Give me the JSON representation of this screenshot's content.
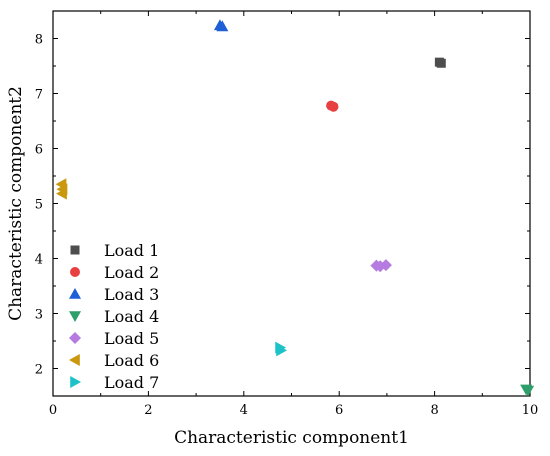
{
  "chart_data": {
    "type": "scatter",
    "title": "",
    "xlabel": "Characteristic component1",
    "ylabel": "Characteristic component2",
    "xlim": [
      0,
      10
    ],
    "ylim": [
      1.5,
      8.5
    ],
    "xticks": [
      0,
      2,
      4,
      6,
      8,
      10
    ],
    "yticks": [
      2,
      3,
      4,
      5,
      6,
      7,
      8
    ],
    "grid": false,
    "legend": "left",
    "series": [
      {
        "name": "Load 1",
        "marker": "square",
        "color": "#4d4d4d",
        "points": [
          [
            8.1,
            7.57
          ],
          [
            8.14,
            7.55
          ]
        ]
      },
      {
        "name": "Load 2",
        "marker": "circle",
        "color": "#e84040",
        "points": [
          [
            5.83,
            6.78
          ],
          [
            5.88,
            6.76
          ]
        ]
      },
      {
        "name": "Load 3",
        "marker": "triangle-up",
        "color": "#1f5fd6",
        "points": [
          [
            3.5,
            8.24
          ],
          [
            3.55,
            8.22
          ]
        ]
      },
      {
        "name": "Load 4",
        "marker": "triangle-down",
        "color": "#2e9e6a",
        "points": [
          [
            9.92,
            1.62
          ],
          [
            9.96,
            1.6
          ]
        ]
      },
      {
        "name": "Load 5",
        "marker": "diamond",
        "color": "#b57be0",
        "points": [
          [
            6.78,
            3.87
          ],
          [
            6.86,
            3.86
          ],
          [
            6.98,
            3.88
          ]
        ]
      },
      {
        "name": "Load 6",
        "marker": "triangle-left",
        "color": "#c9980e",
        "points": [
          [
            0.18,
            5.35
          ],
          [
            0.2,
            5.26
          ],
          [
            0.19,
            5.18
          ]
        ]
      },
      {
        "name": "Load 7",
        "marker": "triangle-right",
        "color": "#1cc2c8",
        "points": [
          [
            4.76,
            2.38
          ],
          [
            4.78,
            2.33
          ]
        ]
      }
    ]
  }
}
